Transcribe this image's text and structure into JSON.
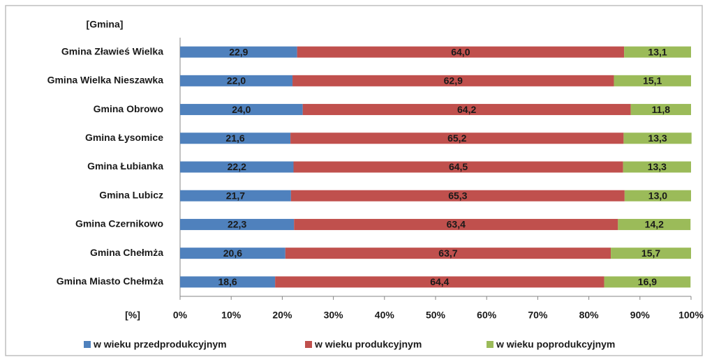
{
  "chart_data": {
    "type": "stacked_barh",
    "y_label": "[Gmina]",
    "x_label": "[%]",
    "categories": [
      "Gmina Zławieś  Wielka",
      "Gmina Wielka  Nieszawka",
      "Gmina Obrowo",
      "Gmina Łysomice",
      "Gmina Łubianka",
      "Gmina Lubicz",
      "Gmina Czernikowo",
      "Gmina Chełmża",
      "Gmina Miasto  Chełmża"
    ],
    "series": [
      {
        "name": "w wieku przedprodukcyjnym",
        "color": "#4f81bd",
        "values": [
          22.9,
          22.0,
          24.0,
          21.6,
          22.2,
          21.7,
          22.3,
          20.6,
          18.6
        ],
        "value_labels": [
          "22,9",
          "22,0",
          "24,0",
          "21,6",
          "22,2",
          "21,7",
          "22,3",
          "20,6",
          "18,6"
        ]
      },
      {
        "name": "w wieku produkcyjnym",
        "color": "#c0504d",
        "values": [
          64.0,
          62.9,
          64.2,
          65.2,
          64.5,
          65.3,
          63.4,
          63.7,
          64.4
        ],
        "value_labels": [
          "64,0",
          "62,9",
          "64,2",
          "65,2",
          "64,5",
          "65,3",
          "63,4",
          "63,7",
          "64,4"
        ]
      },
      {
        "name": "w wieku poprodukcyjnym",
        "color": "#9bbb59",
        "values": [
          13.1,
          15.1,
          11.8,
          13.3,
          13.3,
          13.0,
          14.2,
          15.7,
          16.9
        ],
        "value_labels": [
          "13,1",
          "15,1",
          "11,8",
          "13,3",
          "13,3",
          "13,0",
          "14,2",
          "15,7",
          "16,9"
        ]
      }
    ],
    "xlim": [
      0,
      100
    ],
    "xticks": [
      {
        "value": 0,
        "label": "0%"
      },
      {
        "value": 10,
        "label": "10%"
      },
      {
        "value": 20,
        "label": "20%"
      },
      {
        "value": 30,
        "label": "30%"
      },
      {
        "value": 40,
        "label": "40%"
      },
      {
        "value": 50,
        "label": "50%"
      },
      {
        "value": 60,
        "label": "60%"
      },
      {
        "value": 70,
        "label": "70%"
      },
      {
        "value": 80,
        "label": "80%"
      },
      {
        "value": 90,
        "label": "90%"
      },
      {
        "value": 100,
        "label": "100%"
      }
    ],
    "grid": false,
    "legend": "bottom"
  }
}
